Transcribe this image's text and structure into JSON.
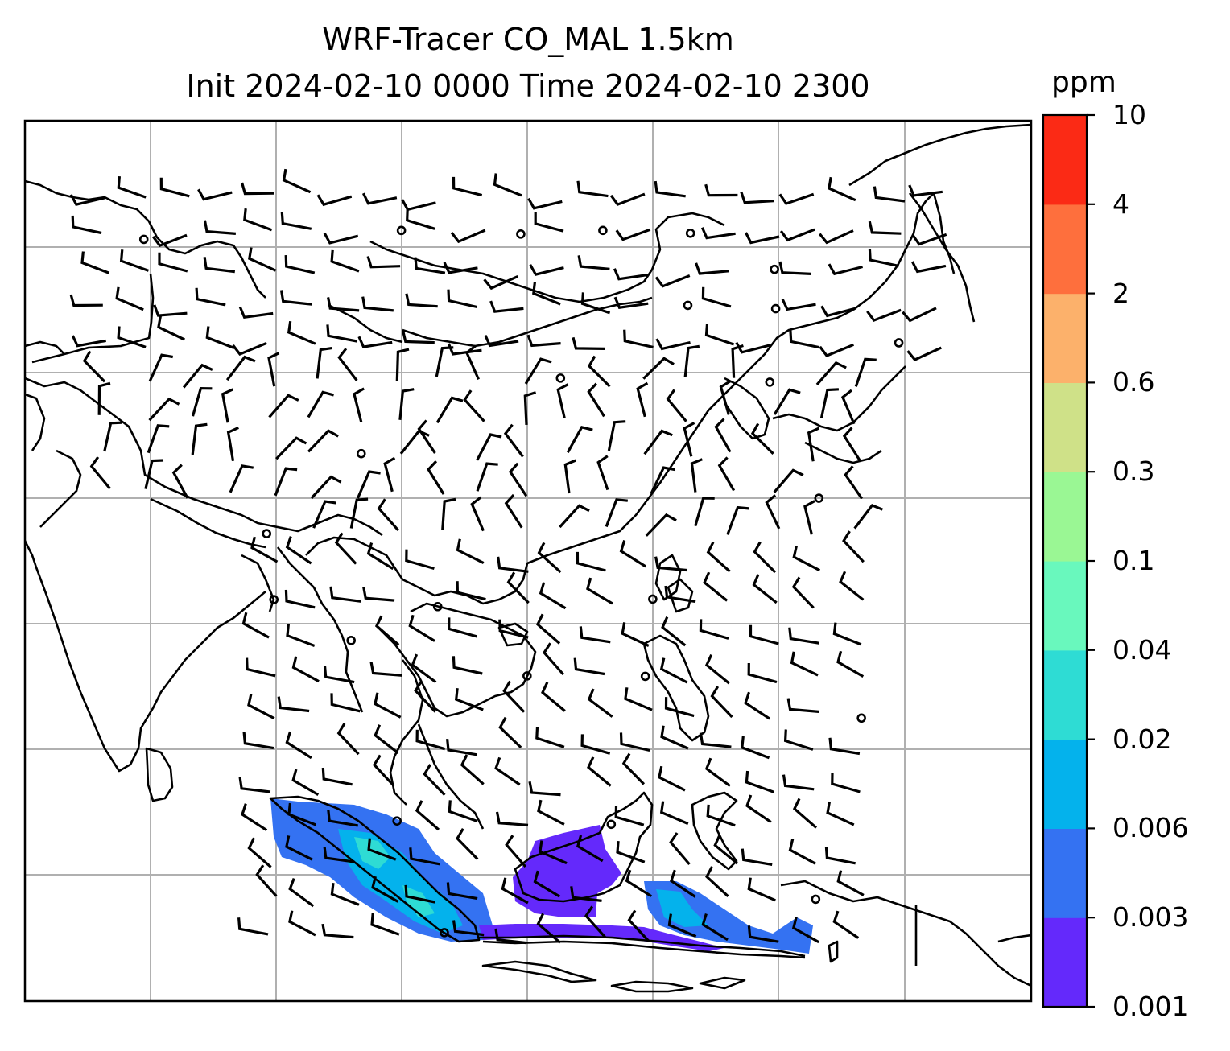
{
  "title": {
    "line1": "WRF-Tracer CO_MAL 1.5km",
    "line2": "Init 2024-02-10 0000 Time 2024-02-10 2300"
  },
  "colorbar": {
    "unit": "ppm",
    "levels": [
      "0.001",
      "0.003",
      "0.006",
      "0.02",
      "0.04",
      "0.1",
      "0.3",
      "0.6",
      "2",
      "4",
      "10"
    ],
    "colors": [
      "#6429fb",
      "#3472f2",
      "#04b2ec",
      "#2edcd4",
      "#69f8bd",
      "#9af794",
      "#cfe188",
      "#fcb16b",
      "#fe6f3d",
      "#fb2a15"
    ]
  },
  "map": {
    "gridlines": true,
    "wind_barbs": true,
    "tracer_plume_colors": [
      "#6429fb",
      "#3472f2",
      "#04b2ec",
      "#2edcd4"
    ]
  }
}
